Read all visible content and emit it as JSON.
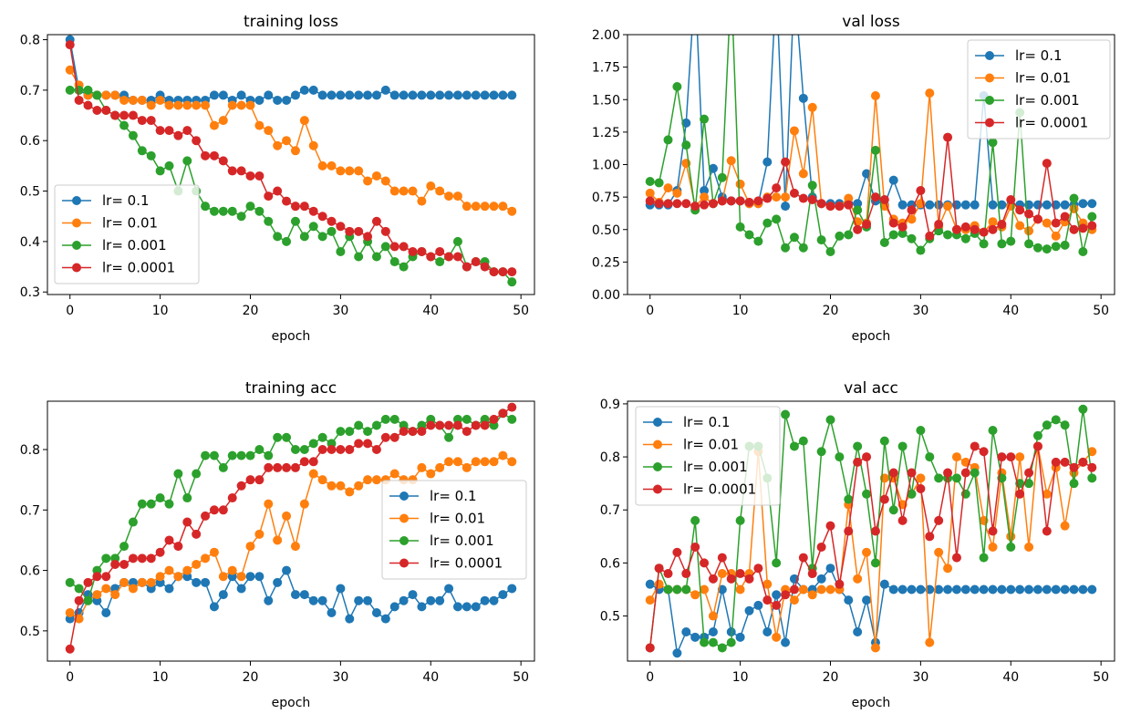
{
  "chart_data": [
    {
      "type": "line",
      "title": "training loss",
      "xlabel": "epoch",
      "ylabel": "",
      "xlim": [
        -2.5,
        51.5
      ],
      "ylim": [
        0.295,
        0.81
      ],
      "xticks": [
        "0",
        "10",
        "20",
        "30",
        "40",
        "50"
      ],
      "yticks": [
        "0.3",
        "0.4",
        "0.5",
        "0.6",
        "0.7",
        "0.8"
      ],
      "legend": "center-left",
      "series": [
        {
          "name": "lr= 0.1",
          "color": "#1f77b4",
          "values": [
            0.8,
            0.7,
            0.69,
            0.69,
            0.69,
            0.69,
            0.69,
            0.68,
            0.68,
            0.68,
            0.69,
            0.68,
            0.68,
            0.68,
            0.68,
            0.68,
            0.69,
            0.69,
            0.68,
            0.69,
            0.68,
            0.68,
            0.69,
            0.68,
            0.68,
            0.69,
            0.7,
            0.7,
            0.69,
            0.69,
            0.69,
            0.69,
            0.69,
            0.69,
            0.69,
            0.7,
            0.69,
            0.69,
            0.69,
            0.69,
            0.69,
            0.69,
            0.69,
            0.69,
            0.69,
            0.69,
            0.69,
            0.69,
            0.69,
            0.69
          ]
        },
        {
          "name": "lr= 0.01",
          "color": "#ff7f0e",
          "values": [
            0.74,
            0.71,
            0.69,
            0.69,
            0.69,
            0.69,
            0.68,
            0.68,
            0.68,
            0.67,
            0.68,
            0.67,
            0.67,
            0.67,
            0.67,
            0.67,
            0.63,
            0.64,
            0.67,
            0.67,
            0.67,
            0.63,
            0.62,
            0.59,
            0.6,
            0.58,
            0.64,
            0.59,
            0.55,
            0.55,
            0.54,
            0.54,
            0.54,
            0.52,
            0.53,
            0.52,
            0.5,
            0.5,
            0.5,
            0.48,
            0.51,
            0.5,
            0.49,
            0.49,
            0.47,
            0.47,
            0.47,
            0.47,
            0.47,
            0.46
          ]
        },
        {
          "name": "lr= 0.001",
          "color": "#2ca02c",
          "values": [
            0.7,
            0.7,
            0.7,
            0.69,
            0.66,
            0.65,
            0.63,
            0.61,
            0.58,
            0.57,
            0.54,
            0.55,
            0.5,
            0.56,
            0.5,
            0.47,
            0.46,
            0.46,
            0.46,
            0.45,
            0.47,
            0.46,
            0.44,
            0.41,
            0.4,
            0.44,
            0.41,
            0.43,
            0.41,
            0.42,
            0.38,
            0.41,
            0.37,
            0.4,
            0.37,
            0.39,
            0.36,
            0.35,
            0.37,
            0.38,
            0.37,
            0.36,
            0.37,
            0.4,
            0.35,
            0.36,
            0.36,
            0.34,
            0.34,
            0.32
          ]
        },
        {
          "name": "lr= 0.0001",
          "color": "#d62728",
          "values": [
            0.79,
            0.68,
            0.67,
            0.66,
            0.66,
            0.65,
            0.65,
            0.65,
            0.64,
            0.64,
            0.62,
            0.62,
            0.61,
            0.62,
            0.6,
            0.57,
            0.57,
            0.56,
            0.54,
            0.54,
            0.53,
            0.53,
            0.49,
            0.5,
            0.48,
            0.47,
            0.47,
            0.46,
            0.45,
            0.44,
            0.43,
            0.42,
            0.42,
            0.41,
            0.44,
            0.42,
            0.39,
            0.39,
            0.38,
            0.38,
            0.37,
            0.38,
            0.37,
            0.37,
            0.35,
            0.36,
            0.35,
            0.34,
            0.34,
            0.34
          ]
        }
      ]
    },
    {
      "type": "line",
      "title": "val loss",
      "xlabel": "epoch",
      "ylabel": "",
      "xlim": [
        -2.5,
        51.5
      ],
      "ylim": [
        0,
        2
      ],
      "xticks": [
        "0",
        "10",
        "20",
        "30",
        "40",
        "50"
      ],
      "yticks": [
        "0.00",
        "0.25",
        "0.50",
        "0.75",
        "1.00",
        "1.25",
        "1.50",
        "1.75",
        "2.00"
      ],
      "legend": "upper right",
      "series": [
        {
          "name": "lr= 0.1",
          "color": "#1f77b4",
          "values": [
            0.69,
            0.69,
            0.69,
            0.8,
            1.32,
            2.4,
            0.8,
            0.97,
            0.75,
            0.72,
            0.72,
            0.7,
            0.7,
            1.02,
            2.4,
            0.68,
            2.4,
            1.51,
            0.75,
            0.7,
            0.7,
            0.7,
            0.7,
            0.7,
            0.93,
            0.72,
            0.69,
            0.88,
            0.69,
            0.69,
            0.69,
            0.69,
            0.69,
            0.69,
            0.69,
            0.69,
            0.69,
            1.53,
            0.69,
            0.69,
            0.69,
            0.69,
            0.69,
            0.69,
            0.69,
            0.69,
            0.69,
            0.69,
            0.7,
            0.7
          ]
        },
        {
          "name": "lr= 0.01",
          "color": "#ff7f0e",
          "values": [
            0.78,
            0.71,
            0.82,
            0.78,
            1.01,
            0.68,
            0.75,
            0.7,
            0.72,
            1.03,
            0.85,
            0.7,
            0.7,
            0.75,
            0.75,
            0.75,
            1.26,
            0.93,
            1.44,
            0.7,
            0.68,
            0.68,
            0.74,
            0.56,
            0.55,
            1.53,
            0.68,
            0.58,
            0.55,
            0.58,
            0.7,
            1.55,
            0.52,
            0.68,
            0.5,
            0.5,
            0.53,
            0.48,
            0.56,
            0.52,
            0.68,
            0.53,
            0.49,
            0.58,
            0.55,
            0.45,
            0.56,
            0.66,
            0.55,
            0.5
          ]
        },
        {
          "name": "lr= 0.001",
          "color": "#2ca02c",
          "values": [
            0.87,
            0.86,
            1.19,
            1.6,
            1.15,
            0.65,
            1.35,
            0.7,
            0.9,
            2.4,
            0.52,
            0.46,
            0.41,
            0.55,
            0.58,
            0.36,
            0.44,
            0.36,
            0.84,
            0.42,
            0.33,
            0.45,
            0.46,
            0.65,
            0.52,
            1.11,
            0.4,
            0.46,
            0.47,
            0.43,
            0.34,
            0.43,
            0.49,
            0.46,
            0.46,
            0.43,
            0.47,
            0.39,
            1.17,
            0.39,
            0.41,
            1.4,
            0.39,
            0.36,
            0.35,
            0.37,
            0.38,
            0.74,
            0.33,
            0.6
          ]
        },
        {
          "name": "lr= 0.0001",
          "color": "#d62728",
          "values": [
            0.72,
            0.7,
            0.7,
            0.7,
            0.7,
            0.68,
            0.69,
            0.7,
            0.72,
            0.72,
            0.72,
            0.71,
            0.72,
            0.74,
            0.82,
            1.02,
            0.78,
            0.74,
            0.73,
            0.7,
            0.68,
            0.68,
            0.69,
            0.5,
            0.54,
            0.75,
            0.73,
            0.55,
            0.52,
            0.65,
            0.8,
            0.45,
            0.54,
            1.21,
            0.5,
            0.52,
            0.5,
            0.48,
            0.5,
            0.54,
            0.73,
            0.65,
            0.62,
            0.58,
            1.01,
            0.55,
            0.6,
            0.5,
            0.51,
            0.53
          ]
        }
      ]
    },
    {
      "type": "line",
      "title": "training acc",
      "xlabel": "epoch",
      "ylabel": "",
      "xlim": [
        -2.5,
        51.5
      ],
      "ylim": [
        0.45,
        0.88
      ],
      "xticks": [
        "0",
        "10",
        "20",
        "30",
        "40",
        "50"
      ],
      "yticks": [
        "0.5",
        "0.6",
        "0.7",
        "0.8"
      ],
      "legend": "center-right",
      "series": [
        {
          "name": "lr= 0.1",
          "color": "#1f77b4",
          "values": [
            0.52,
            0.53,
            0.56,
            0.55,
            0.53,
            0.57,
            0.58,
            0.58,
            0.58,
            0.57,
            0.58,
            0.57,
            0.59,
            0.59,
            0.58,
            0.58,
            0.54,
            0.56,
            0.59,
            0.57,
            0.59,
            0.59,
            0.55,
            0.58,
            0.6,
            0.56,
            0.56,
            0.55,
            0.55,
            0.53,
            0.57,
            0.52,
            0.55,
            0.55,
            0.53,
            0.52,
            0.54,
            0.55,
            0.56,
            0.54,
            0.55,
            0.55,
            0.57,
            0.54,
            0.54,
            0.54,
            0.55,
            0.55,
            0.56,
            0.57
          ]
        },
        {
          "name": "lr= 0.01",
          "color": "#ff7f0e",
          "values": [
            0.53,
            0.52,
            0.55,
            0.56,
            0.57,
            0.56,
            0.58,
            0.57,
            0.58,
            0.58,
            0.59,
            0.6,
            0.59,
            0.6,
            0.61,
            0.62,
            0.63,
            0.59,
            0.6,
            0.59,
            0.64,
            0.66,
            0.71,
            0.65,
            0.69,
            0.64,
            0.71,
            0.76,
            0.75,
            0.74,
            0.74,
            0.73,
            0.74,
            0.75,
            0.75,
            0.75,
            0.76,
            0.75,
            0.75,
            0.77,
            0.76,
            0.77,
            0.78,
            0.78,
            0.77,
            0.78,
            0.78,
            0.78,
            0.79,
            0.78
          ]
        },
        {
          "name": "lr= 0.001",
          "color": "#2ca02c",
          "values": [
            0.58,
            0.57,
            0.55,
            0.6,
            0.62,
            0.62,
            0.64,
            0.68,
            0.71,
            0.71,
            0.72,
            0.71,
            0.76,
            0.72,
            0.76,
            0.79,
            0.79,
            0.77,
            0.79,
            0.79,
            0.79,
            0.8,
            0.79,
            0.82,
            0.82,
            0.8,
            0.8,
            0.81,
            0.82,
            0.81,
            0.83,
            0.83,
            0.84,
            0.83,
            0.84,
            0.85,
            0.85,
            0.84,
            0.83,
            0.84,
            0.85,
            0.84,
            0.82,
            0.85,
            0.85,
            0.84,
            0.85,
            0.84,
            0.86,
            0.85
          ]
        },
        {
          "name": "lr= 0.0001",
          "color": "#d62728",
          "values": [
            0.47,
            0.55,
            0.58,
            0.59,
            0.59,
            0.61,
            0.61,
            0.62,
            0.62,
            0.62,
            0.63,
            0.65,
            0.64,
            0.68,
            0.66,
            0.69,
            0.7,
            0.7,
            0.72,
            0.74,
            0.75,
            0.75,
            0.77,
            0.77,
            0.77,
            0.77,
            0.78,
            0.78,
            0.8,
            0.8,
            0.8,
            0.8,
            0.81,
            0.81,
            0.8,
            0.82,
            0.82,
            0.83,
            0.83,
            0.83,
            0.84,
            0.84,
            0.84,
            0.84,
            0.83,
            0.84,
            0.84,
            0.85,
            0.86,
            0.87
          ]
        }
      ]
    },
    {
      "type": "line",
      "title": "val acc",
      "xlabel": "epoch",
      "ylabel": "",
      "xlim": [
        -2.5,
        51.5
      ],
      "ylim": [
        0.415,
        0.905
      ],
      "xticks": [
        "0",
        "10",
        "20",
        "30",
        "40",
        "50"
      ],
      "yticks": [
        "0.5",
        "0.6",
        "0.7",
        "0.8",
        "0.9"
      ],
      "legend": "upper left",
      "series": [
        {
          "name": "lr= 0.1",
          "color": "#1f77b4",
          "values": [
            0.56,
            0.55,
            0.55,
            0.43,
            0.47,
            0.46,
            0.46,
            0.47,
            0.55,
            0.47,
            0.46,
            0.51,
            0.52,
            0.47,
            0.54,
            0.45,
            0.57,
            0.55,
            0.55,
            0.57,
            0.59,
            0.55,
            0.53,
            0.47,
            0.53,
            0.45,
            0.56,
            0.55,
            0.55,
            0.55,
            0.55,
            0.55,
            0.55,
            0.55,
            0.55,
            0.55,
            0.55,
            0.55,
            0.55,
            0.55,
            0.55,
            0.55,
            0.55,
            0.55,
            0.55,
            0.55,
            0.55,
            0.55,
            0.55,
            0.55
          ]
        },
        {
          "name": "lr= 0.01",
          "color": "#ff7f0e",
          "values": [
            0.53,
            0.56,
            0.55,
            0.55,
            0.55,
            0.54,
            0.55,
            0.5,
            0.58,
            0.58,
            0.55,
            0.58,
            0.81,
            0.56,
            0.46,
            0.55,
            0.53,
            0.55,
            0.54,
            0.55,
            0.55,
            0.55,
            0.71,
            0.57,
            0.62,
            0.44,
            0.76,
            0.76,
            0.71,
            0.73,
            0.76,
            0.45,
            0.62,
            0.59,
            0.8,
            0.79,
            0.78,
            0.68,
            0.63,
            0.77,
            0.65,
            0.8,
            0.63,
            0.82,
            0.73,
            0.78,
            0.67,
            0.77,
            0.79,
            0.81
          ]
        },
        {
          "name": "lr= 0.001",
          "color": "#2ca02c",
          "values": [
            0.44,
            0.59,
            0.55,
            0.55,
            0.55,
            0.68,
            0.45,
            0.45,
            0.44,
            0.45,
            0.68,
            0.82,
            0.82,
            0.76,
            0.6,
            0.88,
            0.82,
            0.83,
            0.59,
            0.81,
            0.87,
            0.8,
            0.72,
            0.82,
            0.73,
            0.6,
            0.83,
            0.7,
            0.82,
            0.73,
            0.85,
            0.8,
            0.76,
            0.76,
            0.76,
            0.73,
            0.77,
            0.61,
            0.85,
            0.76,
            0.63,
            0.75,
            0.75,
            0.84,
            0.86,
            0.87,
            0.86,
            0.75,
            0.89,
            0.76
          ]
        },
        {
          "name": "lr= 0.0001",
          "color": "#d62728",
          "values": [
            0.44,
            0.59,
            0.58,
            0.62,
            0.58,
            0.63,
            0.6,
            0.57,
            0.61,
            0.57,
            0.58,
            0.57,
            0.59,
            0.53,
            0.52,
            0.54,
            0.55,
            0.61,
            0.58,
            0.63,
            0.67,
            0.56,
            0.66,
            0.79,
            0.8,
            0.66,
            0.72,
            0.77,
            0.68,
            0.77,
            0.74,
            0.65,
            0.68,
            0.77,
            0.61,
            0.77,
            0.82,
            0.81,
            0.66,
            0.8,
            0.8,
            0.73,
            0.77,
            0.82,
            0.66,
            0.79,
            0.79,
            0.78,
            0.79,
            0.78
          ]
        }
      ]
    }
  ]
}
